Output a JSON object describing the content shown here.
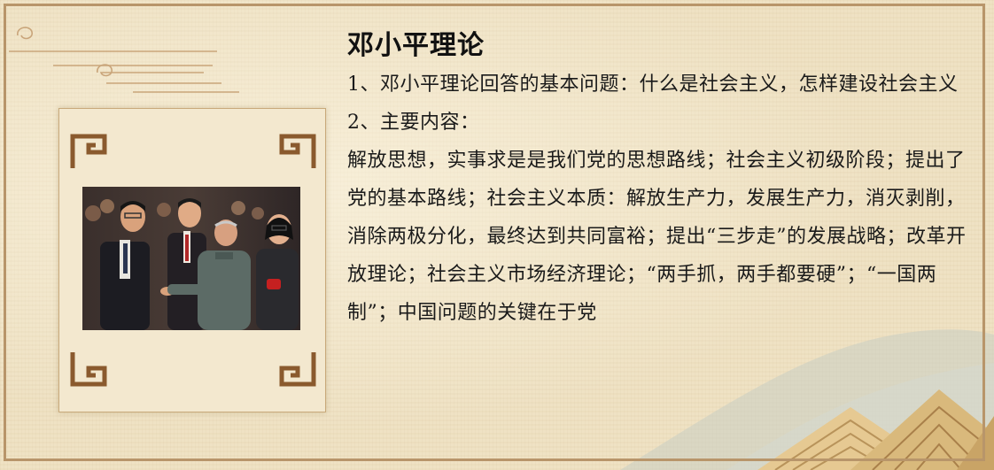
{
  "title": "邓小平理论",
  "paragraphs": [
    "1、邓小平理论回答的基本问题：什么是社会主义，怎样建设社会主义",
    "2、主要内容：",
    "解放思想，实事求是是我们党的思想路线；社会主义初级阶段；提出了党的基本路线；社会主义本质：解放生产力，发展生产力，消灭剥削，消除两极分化，最终达到共同富裕；提出“三步走”的发展战略；改革开放理论；社会主义市场经济理论；“两手抓，两手都要硬”；“一国两制”；中国问题的关键在于党"
  ],
  "colors": {
    "background": "#efe2c4",
    "frame": "#b8956a",
    "ornament": "#8a5a2e",
    "mountain_dark": "#b8935a",
    "mountain_light": "#e6c992",
    "wave": "#c9cdc3"
  }
}
